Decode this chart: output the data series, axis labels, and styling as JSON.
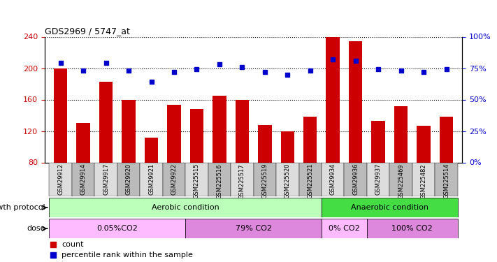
{
  "title": "GDS2969 / 5747_at",
  "samples": [
    "GSM29912",
    "GSM29914",
    "GSM29917",
    "GSM29920",
    "GSM29921",
    "GSM29922",
    "GSM225515",
    "GSM225516",
    "GSM225517",
    "GSM225519",
    "GSM225520",
    "GSM225521",
    "GSM29934",
    "GSM29936",
    "GSM29937",
    "GSM225469",
    "GSM225482",
    "GSM225514"
  ],
  "counts": [
    200,
    130,
    183,
    160,
    112,
    153,
    148,
    165,
    160,
    128,
    120,
    138,
    240,
    234,
    133,
    152,
    127,
    138
  ],
  "percentiles": [
    79,
    73,
    79,
    73,
    64,
    72,
    74,
    78,
    76,
    72,
    70,
    73,
    82,
    81,
    74,
    73,
    72,
    74
  ],
  "ylim_left": [
    80,
    240
  ],
  "ylim_right": [
    0,
    100
  ],
  "yticks_left": [
    80,
    120,
    160,
    200,
    240
  ],
  "yticks_right": [
    0,
    25,
    50,
    75,
    100
  ],
  "bar_color": "#CC0000",
  "dot_color": "#0000CC",
  "aerobic_color": "#BBFFBB",
  "anaerobic_color": "#44DD44",
  "aerobic_samples": 12,
  "anaerobic_samples": 6,
  "dose_colors_alt": [
    "#FFBBFF",
    "#DD88DD"
  ],
  "dose_groups": [
    {
      "label": "0.05%CO2",
      "start": 0,
      "end": 6,
      "color_idx": 0
    },
    {
      "label": "79% CO2",
      "start": 6,
      "end": 12,
      "color_idx": 1
    },
    {
      "label": "0% CO2",
      "start": 12,
      "end": 14,
      "color_idx": 0
    },
    {
      "label": "100% CO2",
      "start": 14,
      "end": 18,
      "color_idx": 1
    }
  ],
  "growth_protocol_label": "growth protocol",
  "dose_label": "dose",
  "legend_count_label": "count",
  "legend_pct_label": "percentile rank within the sample"
}
